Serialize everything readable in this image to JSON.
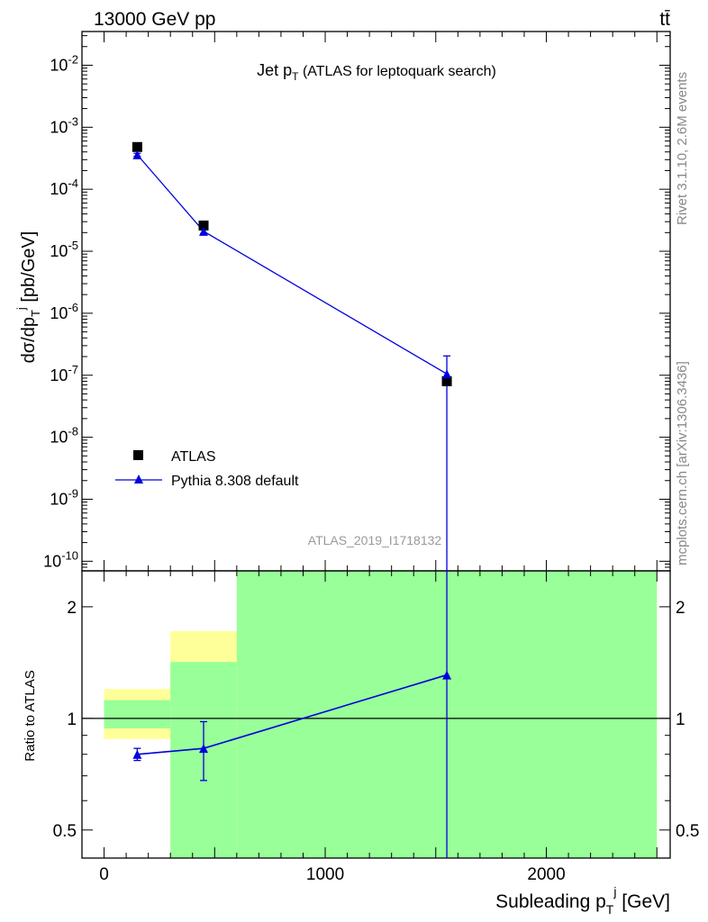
{
  "header": {
    "left": "13000 GeV pp",
    "right": "tt̄"
  },
  "side_text": {
    "rivet": "Rivet 3.1.10,  2.6M events",
    "mcplots": "mcplots.cern.ch [arXiv:1306.3436]"
  },
  "watermark": "ATLAS_2019_I1718132",
  "chart_data": [
    {
      "type": "scatter",
      "panel": "main",
      "title": "Jet pT (ATLAS for leptoquark search)",
      "ylabel": "dσ/dpTj [pb/GeV]",
      "yscale": "log",
      "xlim": [
        -100,
        2560
      ],
      "ylim": [
        7e-11,
        0.035
      ],
      "yticks": [
        {
          "value": 1e-10,
          "label": "10^-10"
        },
        {
          "value": 1e-09,
          "label": "10^-9"
        },
        {
          "value": 1e-08,
          "label": "10^-8"
        },
        {
          "value": 1e-07,
          "label": "10^-7"
        },
        {
          "value": 1e-06,
          "label": "10^-6"
        },
        {
          "value": 1e-05,
          "label": "10^-5"
        },
        {
          "value": 0.0001,
          "label": "10^-4"
        },
        {
          "value": 0.001,
          "label": "10^-3"
        },
        {
          "value": 0.01,
          "label": "10^-2"
        }
      ],
      "legend_position": "left-middle",
      "series": [
        {
          "name": "ATLAS",
          "marker": "square",
          "color": "#000000",
          "points": [
            {
              "x": 150,
              "y": 0.00048
            },
            {
              "x": 450,
              "y": 2.6e-05
            },
            {
              "x": 1550,
              "y": 8e-08
            }
          ]
        },
        {
          "name": "Pythia 8.308 default",
          "marker": "triangle",
          "color": "#0000dd",
          "points": [
            {
              "x": 150,
              "y": 0.00036,
              "err_lo": 0.00034,
              "err_hi": 0.00038
            },
            {
              "x": 450,
              "y": 2.1e-05,
              "err_lo": 1.9e-05,
              "err_hi": 2.3e-05
            },
            {
              "x": 1550,
              "y": 1.05e-07,
              "err_lo": 1e-12,
              "err_hi": 2.05e-07
            }
          ]
        }
      ]
    },
    {
      "type": "scatter",
      "panel": "ratio",
      "ylabel": "Ratio to ATLAS",
      "xlabel": "Subleading pTj [GeV]",
      "yscale": "log",
      "xlim": [
        -100,
        2560
      ],
      "ylim": [
        0.42,
        2.5
      ],
      "yticks": [
        {
          "value": 0.5,
          "label": "0.5"
        },
        {
          "value": 1,
          "label": "1"
        },
        {
          "value": 2,
          "label": "2"
        }
      ],
      "xticks": [
        {
          "value": 0,
          "label": "0"
        },
        {
          "value": 1000,
          "label": "1000"
        },
        {
          "value": 2000,
          "label": "2000"
        }
      ],
      "bands": [
        {
          "x0": 0,
          "x1": 300,
          "yellow": [
            0.88,
            1.2
          ],
          "green": [
            0.94,
            1.12
          ]
        },
        {
          "x0": 300,
          "x1": 600,
          "yellow": [
            0.3,
            1.72
          ],
          "green": [
            0.3,
            1.42
          ]
        },
        {
          "x0": 600,
          "x1": 2500,
          "yellow": [
            0.3,
            3.0
          ],
          "green": [
            0.3,
            3.0
          ]
        }
      ],
      "reference_line": 1,
      "series": [
        {
          "name": "Pythia 8.308 default",
          "color": "#0000dd",
          "points": [
            {
              "x": 150,
              "y": 0.8,
              "err_lo": 0.77,
              "err_hi": 0.83
            },
            {
              "x": 450,
              "y": 0.83,
              "err_lo": 0.68,
              "err_hi": 0.98
            },
            {
              "x": 1550,
              "y": 1.31,
              "err_lo": 0.3,
              "err_hi": 3.0
            }
          ]
        }
      ]
    }
  ]
}
